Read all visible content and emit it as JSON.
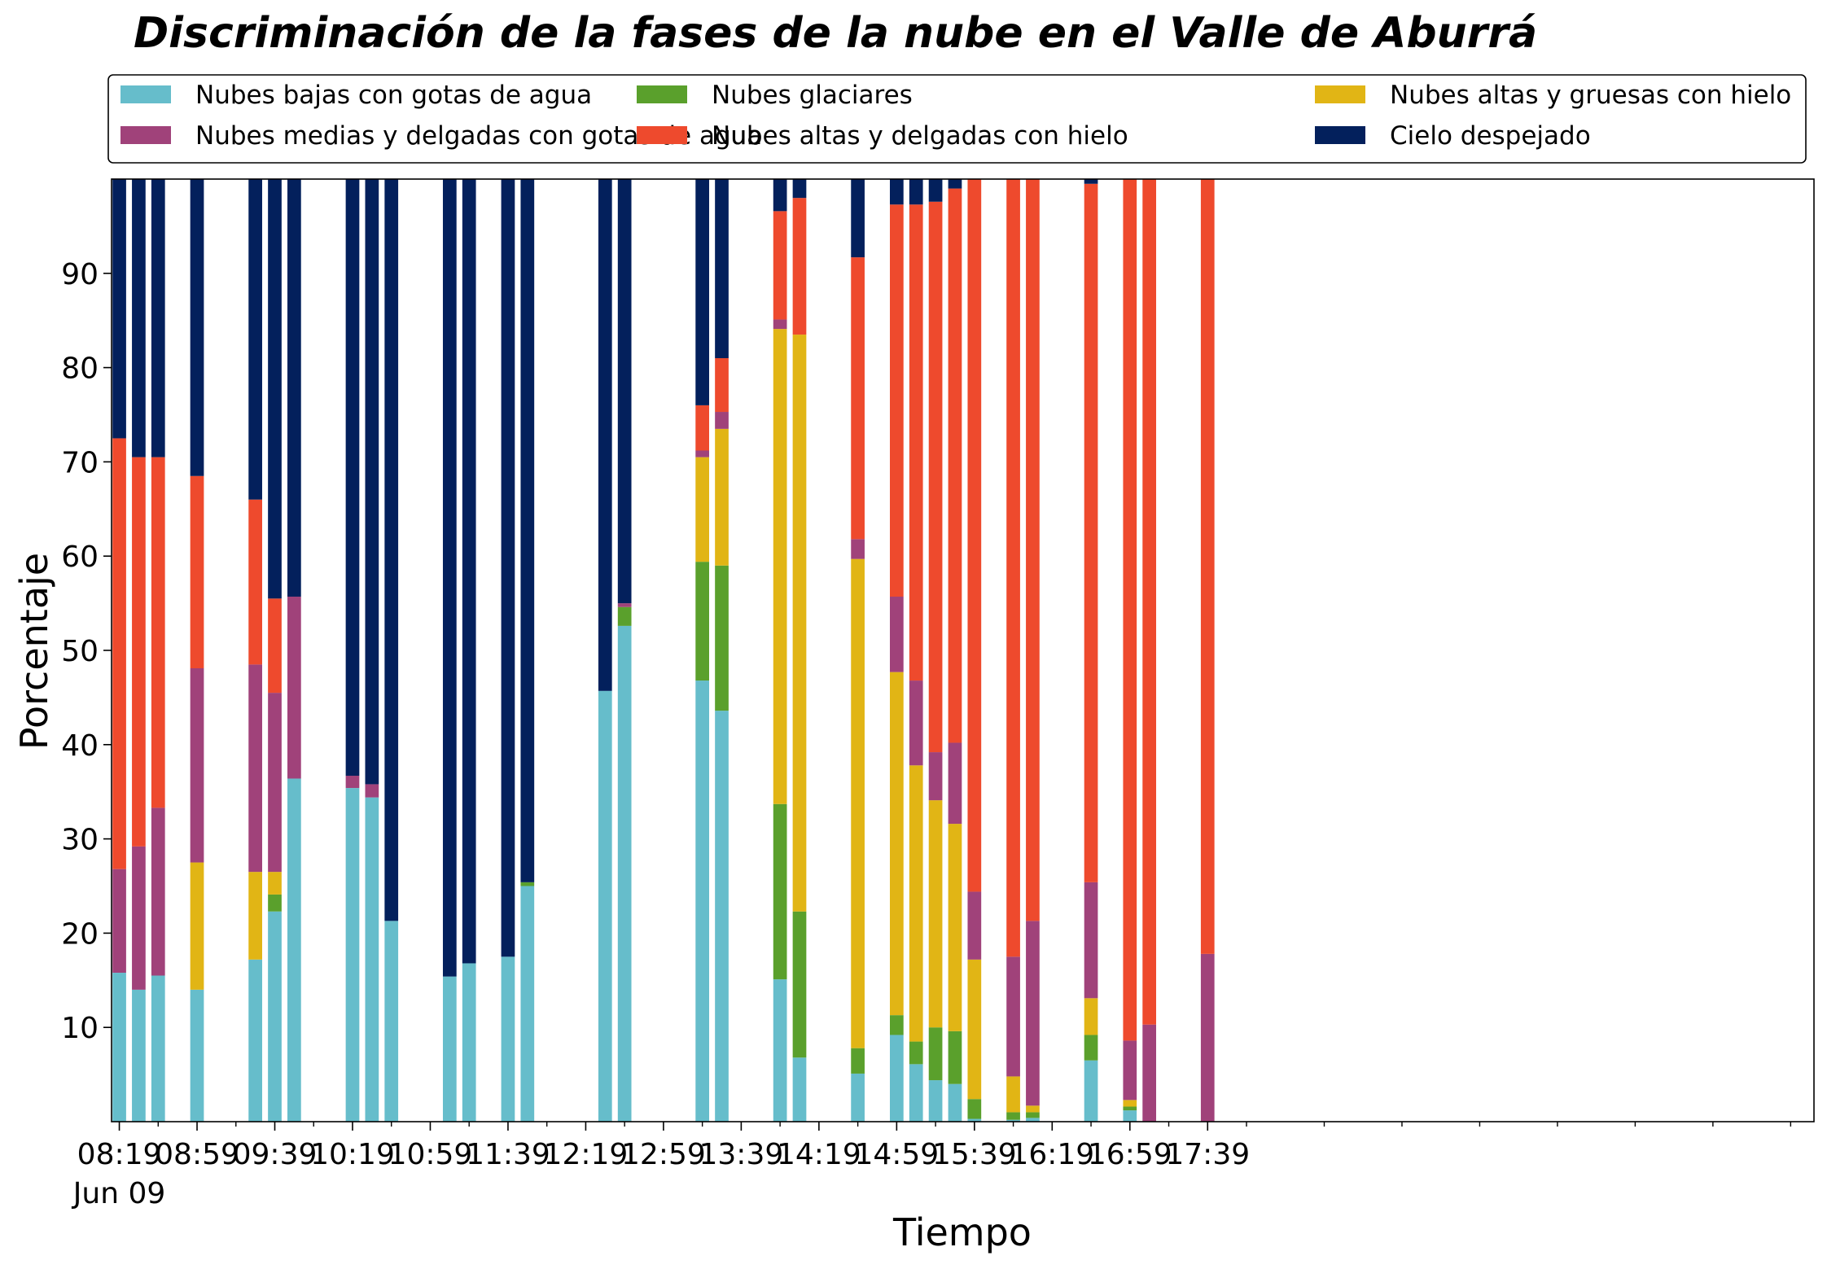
{
  "chart_data": {
    "type": "bar",
    "stacked": true,
    "title": "Discriminación de la fases de la nube en el Valle de Aburrá",
    "xlabel": "Tiempo",
    "ylabel": "Porcentaje",
    "ylim": [
      0,
      100
    ],
    "yticks": [
      10,
      20,
      30,
      40,
      50,
      60,
      70,
      80,
      90
    ],
    "xlim_minutes_since_0819": [
      -4,
      872
    ],
    "xticks": [
      {
        "min": 0,
        "label": "08:19",
        "sublabel": "Jun 09"
      },
      {
        "min": 40,
        "label": "08:59"
      },
      {
        "min": 80,
        "label": "09:39"
      },
      {
        "min": 120,
        "label": "10:19"
      },
      {
        "min": 160,
        "label": "10:59"
      },
      {
        "min": 200,
        "label": "11:39"
      },
      {
        "min": 240,
        "label": "12:19"
      },
      {
        "min": 280,
        "label": "12:59"
      },
      {
        "min": 320,
        "label": "13:39"
      },
      {
        "min": 360,
        "label": "14:19"
      },
      {
        "min": 400,
        "label": "14:59"
      },
      {
        "min": 440,
        "label": "15:39"
      },
      {
        "min": 480,
        "label": "16:19"
      },
      {
        "min": 520,
        "label": "16:59"
      },
      {
        "min": 560,
        "label": "17:39"
      }
    ],
    "grid": false,
    "legend_position": "top",
    "series": [
      {
        "name": "Nubes bajas con gotas de agua",
        "color": "#66bdcb"
      },
      {
        "name": "Nubes glaciares",
        "color": "#5aa02c"
      },
      {
        "name": "Nubes altas y gruesas con hielo",
        "color": "#e1b515"
      },
      {
        "name": "Nubes medias y delgadas con gotas de agua",
        "color": "#a0427a"
      },
      {
        "name": "Nubes altas y delgadas con hielo",
        "color": "#ee4a2d"
      },
      {
        "name": "Cielo despejado",
        "color": "#03205c"
      }
    ],
    "bars": [
      {
        "t": 0,
        "values": [
          15.8,
          0,
          0,
          11.0,
          45.7,
          27.5
        ]
      },
      {
        "t": 10,
        "values": [
          14.0,
          0,
          0,
          15.2,
          41.3,
          29.5
        ]
      },
      {
        "t": 20,
        "values": [
          15.5,
          0,
          0,
          17.8,
          37.2,
          29.5
        ]
      },
      {
        "t": 40,
        "values": [
          14.0,
          0,
          13.5,
          20.6,
          20.4,
          31.5
        ]
      },
      {
        "t": 70,
        "values": [
          17.2,
          0,
          9.3,
          22.0,
          17.5,
          34.0
        ]
      },
      {
        "t": 80,
        "values": [
          22.3,
          1.8,
          2.4,
          19.0,
          10.0,
          44.5
        ]
      },
      {
        "t": 90,
        "values": [
          36.4,
          0,
          0,
          19.3,
          0,
          44.3
        ]
      },
      {
        "t": 120,
        "values": [
          35.4,
          0,
          0,
          1.3,
          0,
          63.3
        ]
      },
      {
        "t": 130,
        "values": [
          34.4,
          0,
          0,
          1.4,
          0,
          64.2
        ]
      },
      {
        "t": 140,
        "values": [
          21.3,
          0,
          0,
          0,
          0,
          78.7
        ]
      },
      {
        "t": 170,
        "values": [
          15.4,
          0,
          0,
          0,
          0,
          84.6
        ]
      },
      {
        "t": 180,
        "values": [
          16.8,
          0,
          0,
          0,
          0,
          83.2
        ]
      },
      {
        "t": 200,
        "values": [
          17.5,
          0,
          0,
          0,
          0,
          82.5
        ]
      },
      {
        "t": 210,
        "values": [
          25.0,
          0.4,
          0,
          0,
          0,
          74.6
        ]
      },
      {
        "t": 250,
        "values": [
          45.7,
          0,
          0,
          0,
          0,
          54.3
        ]
      },
      {
        "t": 260,
        "values": [
          52.6,
          2.0,
          0,
          0.4,
          0,
          45.0
        ]
      },
      {
        "t": 300,
        "values": [
          46.8,
          12.6,
          11.1,
          0.7,
          4.8,
          24.0
        ]
      },
      {
        "t": 310,
        "values": [
          43.6,
          15.4,
          14.5,
          1.8,
          5.7,
          19.0
        ]
      },
      {
        "t": 340,
        "values": [
          15.1,
          18.6,
          50.4,
          1.0,
          11.5,
          3.4
        ]
      },
      {
        "t": 350,
        "values": [
          6.8,
          15.5,
          61.2,
          0,
          14.5,
          2.0
        ]
      },
      {
        "t": 380,
        "values": [
          5.1,
          2.7,
          51.9,
          2.1,
          29.9,
          8.3
        ]
      },
      {
        "t": 400,
        "values": [
          9.2,
          2.1,
          36.4,
          8.0,
          41.6,
          2.7
        ]
      },
      {
        "t": 410,
        "values": [
          6.1,
          2.4,
          29.3,
          9.0,
          50.5,
          2.7
        ]
      },
      {
        "t": 420,
        "values": [
          4.4,
          5.6,
          24.1,
          5.1,
          58.4,
          2.4
        ]
      },
      {
        "t": 430,
        "values": [
          4.0,
          5.6,
          22.0,
          8.6,
          58.8,
          1.0
        ]
      },
      {
        "t": 440,
        "values": [
          0.3,
          2.1,
          14.8,
          7.2,
          75.6,
          0
        ]
      },
      {
        "t": 460,
        "values": [
          0.2,
          0.8,
          3.8,
          12.7,
          82.5,
          0
        ]
      },
      {
        "t": 470,
        "values": [
          0.4,
          0.6,
          0.7,
          19.6,
          78.7,
          0
        ]
      },
      {
        "t": 500,
        "values": [
          6.5,
          2.7,
          3.9,
          12.3,
          74.1,
          0.5
        ]
      },
      {
        "t": 520,
        "values": [
          1.2,
          0.4,
          0.7,
          6.3,
          91.4,
          0
        ]
      },
      {
        "t": 530,
        "values": [
          0,
          0,
          0,
          10.3,
          89.7,
          0
        ]
      },
      {
        "t": 560,
        "values": [
          0,
          0,
          0,
          17.8,
          82.2,
          0
        ]
      }
    ]
  }
}
